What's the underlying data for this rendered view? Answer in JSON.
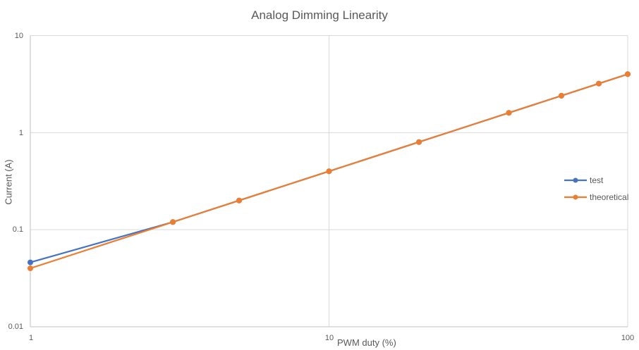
{
  "chart_data": {
    "type": "line",
    "title": "Analog Dimming Linearity",
    "xlabel": "PWM duty (%)",
    "ylabel": "Current (A)",
    "x_scale": "log",
    "y_scale": "log",
    "xlim": [
      1,
      100
    ],
    "ylim": [
      0.01,
      10
    ],
    "x_ticks": [
      "1",
      "10",
      "100"
    ],
    "y_ticks": [
      "10",
      "1",
      "0.1",
      "0.01"
    ],
    "x": [
      1,
      3,
      5,
      10,
      20,
      40,
      60,
      80,
      100
    ],
    "series": [
      {
        "name": "test",
        "color": "#4472C4",
        "values": [
          0.046,
          0.12,
          0.2,
          0.4,
          0.8,
          1.6,
          2.4,
          3.2,
          4.0
        ]
      },
      {
        "name": "theoretical",
        "color": "#ED7D31",
        "values": [
          0.04,
          0.12,
          0.2,
          0.4,
          0.8,
          1.6,
          2.4,
          3.2,
          4.0
        ]
      }
    ],
    "legend_position": "right-inside",
    "grid": true,
    "gridline_color": "#D9D9D9",
    "axis_line_color": "#BFBFBF",
    "text_color": "#595959",
    "background_color": "#FFFFFF"
  }
}
